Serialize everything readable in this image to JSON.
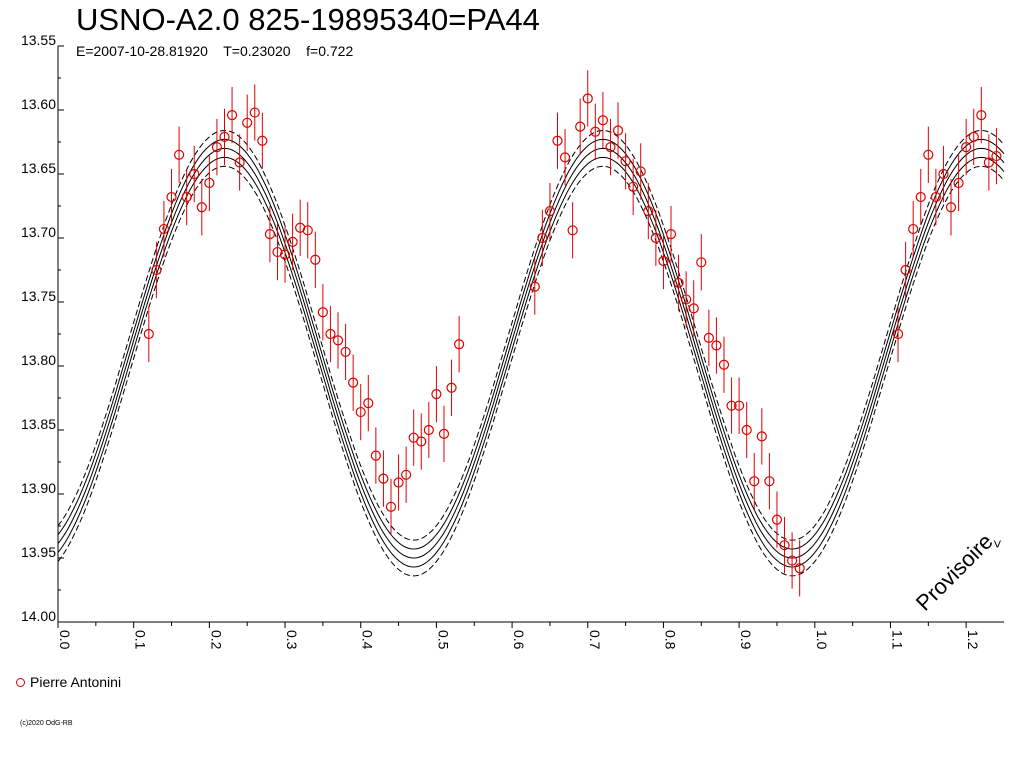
{
  "title": "USNO-A2.0 825-19895340=PA44",
  "subtitle": "E=2007-10-28.81920    T=0.23020    f=0.722",
  "watermark": "Provisoire",
  "watermark_arrow": "<",
  "copyright": "(c)2020 OdG-RB",
  "legend": [
    {
      "label": "Pierre Antonini",
      "color": "#e00000"
    }
  ],
  "chart_data": {
    "type": "scatter",
    "title": "USNO-A2.0 825-19895340=PA44",
    "xlabel": "",
    "ylabel": "",
    "xlim": [
      0.0,
      1.25
    ],
    "ylim": [
      14.0,
      13.55
    ],
    "y_inverted": true,
    "grid": false,
    "legend_position": "bottom-left",
    "x_ticks": [
      "0.0",
      "0.1",
      "0.2",
      "0.3",
      "0.4",
      "0.5",
      "0.6",
      "0.7",
      "0.8",
      "0.9",
      "1.0",
      "1.1",
      "1.2"
    ],
    "y_ticks": [
      "13.55",
      "13.60",
      "13.65",
      "13.70",
      "13.75",
      "13.80",
      "13.85",
      "13.90",
      "13.95",
      "14.00"
    ],
    "model": {
      "mean": 13.79,
      "semi_amplitude": 0.16,
      "max_phase": 0.22,
      "band_inner": 0.007,
      "band_outer": 0.014,
      "phase_period": 0.5
    },
    "series": [
      {
        "name": "Pierre Antonini",
        "color": "#e00000",
        "x": [
          0.12,
          0.13,
          0.14,
          0.15,
          0.16,
          0.17,
          0.18,
          0.19,
          0.2,
          0.21,
          0.22,
          0.23,
          0.24,
          0.25,
          0.26,
          0.27,
          0.28,
          0.29,
          0.3,
          0.31,
          0.32,
          0.33,
          0.34,
          0.35,
          0.36,
          0.37,
          0.38,
          0.39,
          0.4,
          0.41,
          0.42,
          0.43,
          0.44,
          0.45,
          0.46,
          0.47,
          0.48,
          0.49,
          0.5,
          0.51,
          0.52,
          0.53,
          0.63,
          0.64,
          0.65,
          0.66,
          0.67,
          0.68,
          0.69,
          0.7,
          0.71,
          0.72,
          0.73,
          0.74,
          0.75,
          0.76,
          0.77,
          0.78,
          0.79,
          0.8,
          0.81,
          0.82,
          0.83,
          0.84,
          0.85,
          0.86,
          0.87,
          0.88,
          0.89,
          0.9,
          0.91,
          0.92,
          0.93,
          0.94,
          0.95,
          0.96,
          0.97,
          0.98,
          1.11,
          1.12,
          1.13,
          1.14,
          1.15,
          1.16,
          1.17,
          1.18,
          1.19,
          1.2,
          1.21,
          1.22,
          1.23,
          1.24
        ],
        "y": [
          13.775,
          13.725,
          13.693,
          13.668,
          13.635,
          13.668,
          13.65,
          13.676,
          13.657,
          13.629,
          13.621,
          13.604,
          13.641,
          13.61,
          13.602,
          13.624,
          13.697,
          13.711,
          13.713,
          13.703,
          13.692,
          13.694,
          13.717,
          13.758,
          13.775,
          13.78,
          13.789,
          13.813,
          13.836,
          13.829,
          13.87,
          13.888,
          13.91,
          13.891,
          13.885,
          13.856,
          13.859,
          13.85,
          13.822,
          13.853,
          13.817,
          13.783,
          13.738,
          13.7,
          13.679,
          13.624,
          13.637,
          13.694,
          13.613,
          13.591,
          13.617,
          13.608,
          13.629,
          13.616,
          13.64,
          13.66,
          13.648,
          13.679,
          13.7,
          13.718,
          13.697,
          13.735,
          13.748,
          13.755,
          13.719,
          13.778,
          13.784,
          13.799,
          13.831,
          13.831,
          13.85,
          13.89,
          13.855,
          13.89,
          13.92,
          13.94,
          13.952,
          13.958,
          13.775,
          13.725,
          13.693,
          13.668,
          13.635,
          13.668,
          13.65,
          13.676,
          13.657,
          13.629,
          13.621,
          13.604,
          13.641,
          13.636
        ],
        "error": 0.022
      }
    ]
  }
}
